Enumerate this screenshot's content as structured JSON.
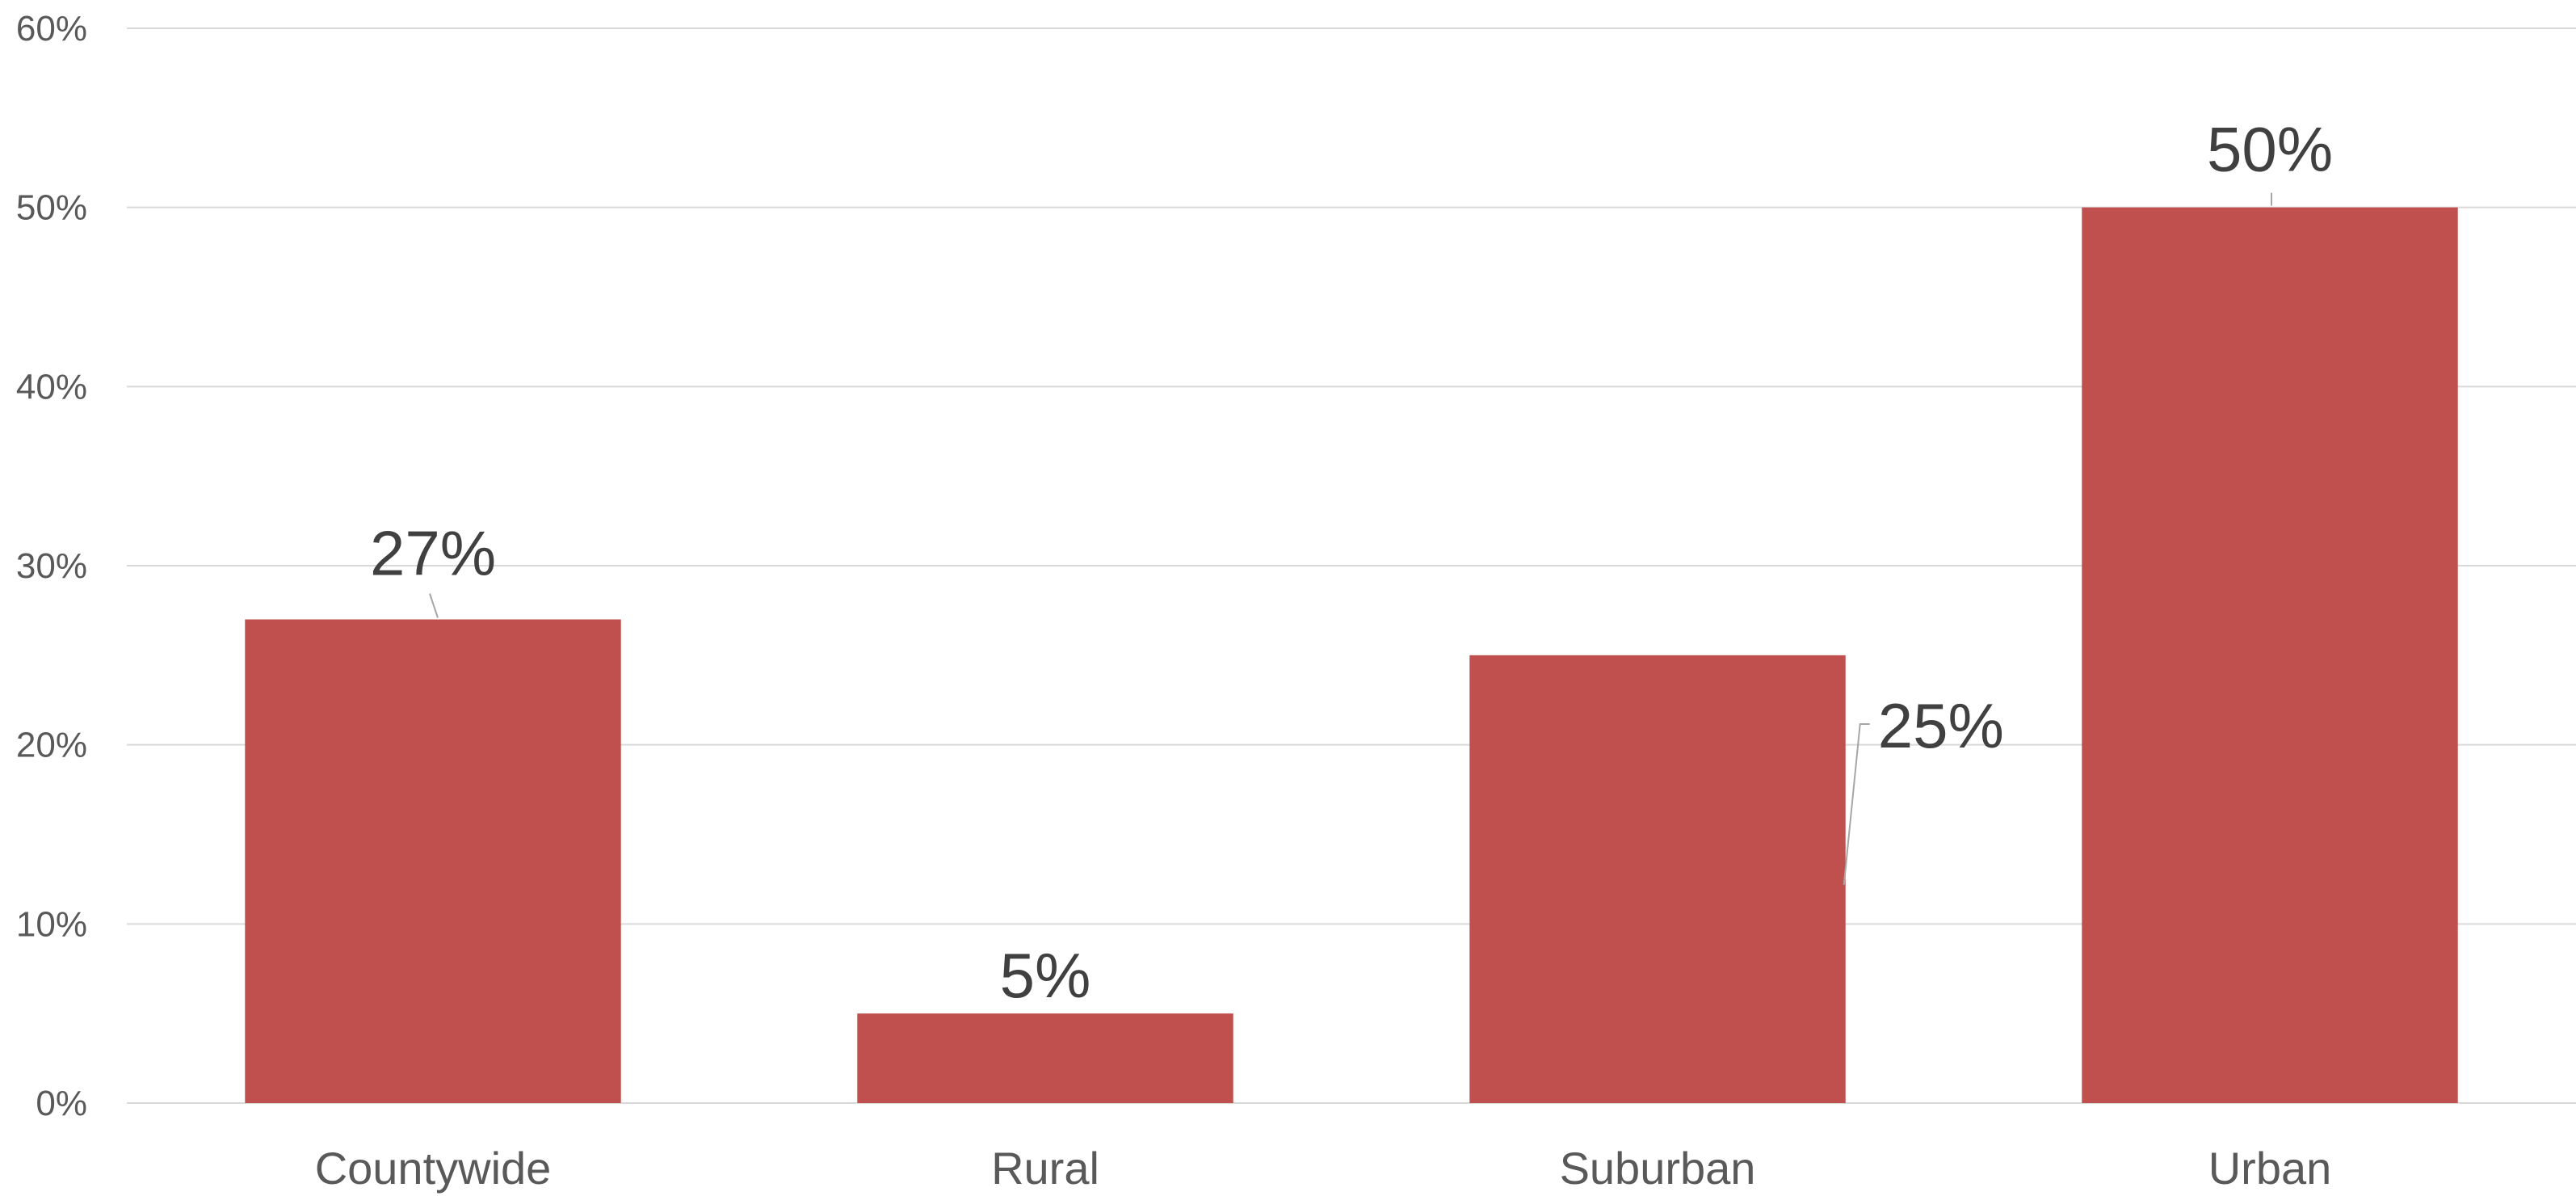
{
  "chart_data": {
    "type": "bar",
    "title": "",
    "xlabel": "",
    "ylabel": "",
    "categories": [
      "Countywide",
      "Rural",
      "Suburban",
      "Urban"
    ],
    "values": [
      27,
      5,
      25,
      50
    ],
    "data_labels": [
      "27%",
      "5%",
      "25%",
      "50%"
    ],
    "y_tick_labels": [
      "0%",
      "10%",
      "20%",
      "30%",
      "40%",
      "50%",
      "60%"
    ],
    "ylim": [
      0,
      60
    ],
    "y_unit": "%",
    "grid": true,
    "legend": "none",
    "colors": {
      "bar": "#c0504d",
      "grid": "#d9d9d9",
      "tick_text": "#595959",
      "data_label_text": "#404040",
      "leader_line": "#a6a6a6"
    }
  }
}
